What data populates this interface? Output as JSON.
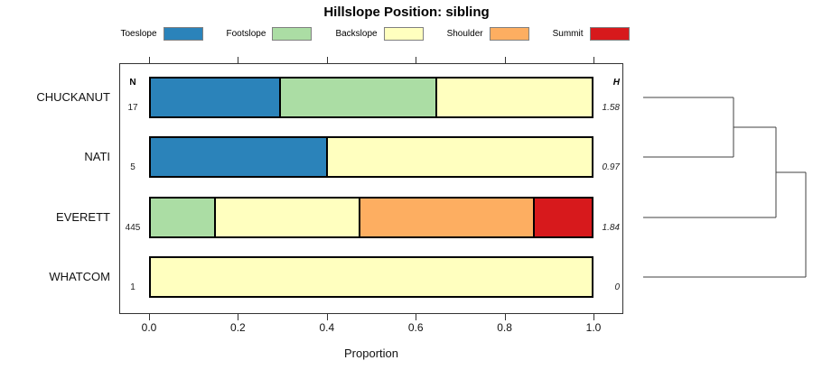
{
  "chart_data": {
    "type": "bar",
    "subtype": "horizontal-stacked-proportion-with-dendrogram",
    "title": "Hillslope Position: sibling",
    "xlabel": "Proportion",
    "xlim": [
      0,
      1
    ],
    "x_ticks": [
      "0.0",
      "0.2",
      "0.4",
      "0.6",
      "0.8",
      "1.0"
    ],
    "grid": false,
    "legend_position": "top",
    "legend": [
      {
        "label": "Toeslope",
        "color": "#2B83BA"
      },
      {
        "label": "Footslope",
        "color": "#ABDDA4"
      },
      {
        "label": "Backslope",
        "color": "#FFFFBF"
      },
      {
        "label": "Shoulder",
        "color": "#FDAE61"
      },
      {
        "label": "Summit",
        "color": "#D7191C"
      }
    ],
    "columns": {
      "n_header": "N",
      "h_header": "H"
    },
    "rows": [
      {
        "label": "CHUCKANUT",
        "n": "17",
        "h": "1.58",
        "segments": [
          {
            "category": "Toeslope",
            "value": 0.294
          },
          {
            "category": "Footslope",
            "value": 0.353
          },
          {
            "category": "Backslope",
            "value": 0.353
          }
        ]
      },
      {
        "label": "NATI",
        "n": "5",
        "h": "0.97",
        "segments": [
          {
            "category": "Toeslope",
            "value": 0.4
          },
          {
            "category": "Backslope",
            "value": 0.6
          }
        ]
      },
      {
        "label": "EVERETT",
        "n": "445",
        "h": "1.84",
        "segments": [
          {
            "category": "Footslope",
            "value": 0.146
          },
          {
            "category": "Backslope",
            "value": 0.327
          },
          {
            "category": "Shoulder",
            "value": 0.397
          },
          {
            "category": "Summit",
            "value": 0.13
          }
        ]
      },
      {
        "label": "WHATCOM",
        "n": "1",
        "h": "0",
        "segments": [
          {
            "category": "Backslope",
            "value": 1.0
          }
        ]
      }
    ],
    "dendrogram": {
      "side": "right",
      "leaf_order": [
        "CHUCKANUT",
        "NATI",
        "EVERETT",
        "WHATCOM"
      ],
      "merges": [
        {
          "a": "leaf:0",
          "b": "leaf:1",
          "x_frac": 0.556
        },
        {
          "a": "merge:0",
          "b": "leaf:2",
          "x_frac": 0.817
        },
        {
          "a": "merge:1",
          "b": "leaf:3",
          "x_frac": 1.0
        }
      ],
      "line_color": "#404040"
    }
  }
}
